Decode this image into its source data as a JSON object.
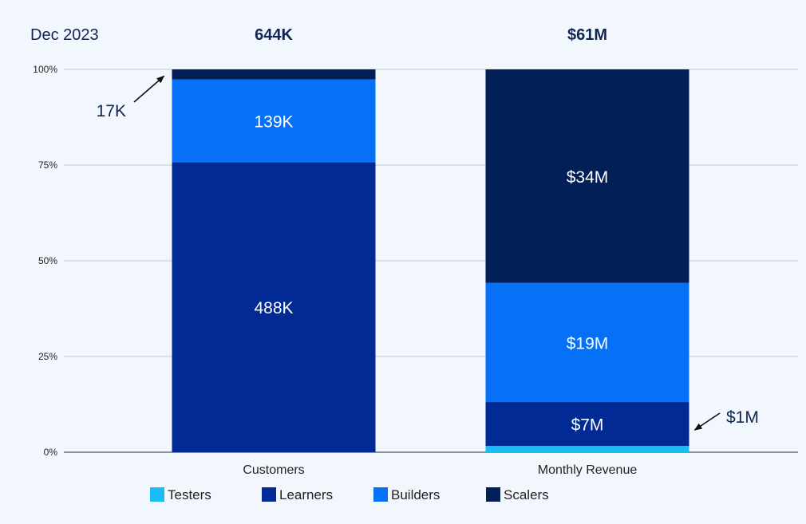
{
  "chart_data": {
    "type": "bar",
    "stacked": true,
    "normalized": true,
    "title": "Dec 2023",
    "categories": [
      "Customers",
      "Monthly Revenue"
    ],
    "totals": [
      "644K",
      "$61M"
    ],
    "y_ticks": [
      "0%",
      "25%",
      "50%",
      "75%",
      "100%"
    ],
    "ylim": [
      0,
      100
    ],
    "grid": true,
    "legend_position": "bottom",
    "series": [
      {
        "name": "Testers",
        "color": "#19bdf2",
        "values": [
          0,
          1
        ],
        "labels": [
          "",
          ""
        ]
      },
      {
        "name": "Learners",
        "color": "#012a95",
        "values": [
          488,
          7
        ],
        "labels": [
          "488K",
          "$7M"
        ]
      },
      {
        "name": "Builders",
        "color": "#0671f7",
        "values": [
          139,
          19
        ],
        "labels": [
          "139K",
          "$19M"
        ]
      },
      {
        "name": "Scalers",
        "color": "#031f57",
        "values": [
          17,
          34
        ],
        "labels": [
          "",
          "$34M"
        ]
      }
    ],
    "callouts": [
      {
        "text": "17K",
        "category": "Customers",
        "series": "Scalers"
      },
      {
        "text": "$1M",
        "category": "Monthly Revenue",
        "series": "Testers"
      }
    ]
  }
}
